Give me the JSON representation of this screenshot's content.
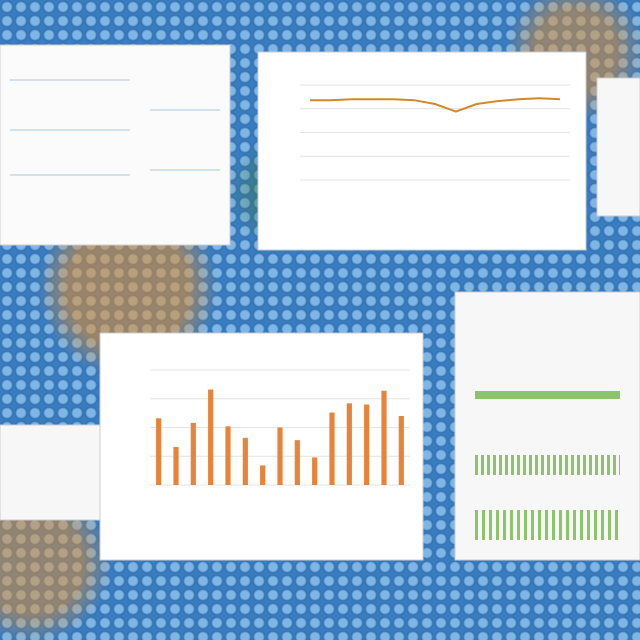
{
  "charts": [
    {
      "type": "line",
      "color": "#d08a2a",
      "ylim": [
        0,
        100
      ],
      "values": [
        84,
        84,
        85,
        85,
        85,
        84,
        80,
        72,
        80,
        83,
        85,
        86,
        85
      ]
    },
    {
      "type": "bar",
      "color": "#e8833a",
      "ylim": [
        0,
        100
      ],
      "values": [
        58,
        33,
        54,
        83,
        51,
        41,
        17,
        50,
        39,
        24,
        63,
        71,
        70,
        82,
        60
      ]
    }
  ]
}
